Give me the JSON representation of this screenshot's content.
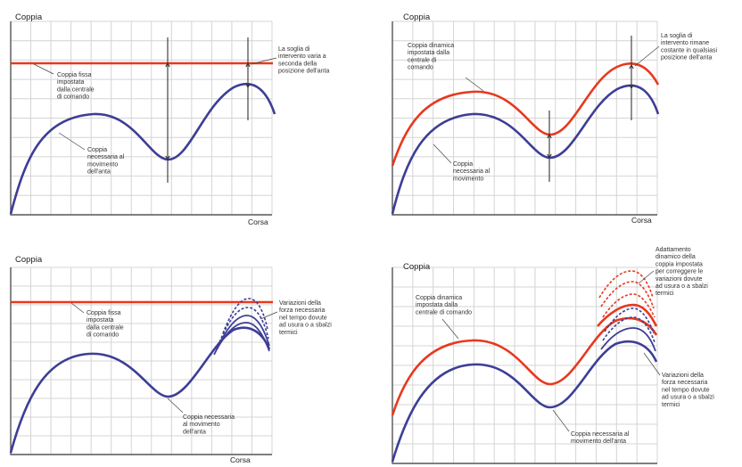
{
  "panels": [
    {
      "id": "p1",
      "title": "Coppia",
      "x_label": "Corsa",
      "labels": {
        "red": [
          "Coppia fissa",
          "impostata",
          "dalla centrale",
          "di comando"
        ],
        "blue": [
          "Coppia",
          "necessaria al",
          "movimento",
          "dell'anta"
        ],
        "side": [
          "La soglia di",
          "intervento varia a",
          "seconda della",
          "posizione dell'anta"
        ]
      }
    },
    {
      "id": "p2",
      "title": "Coppia",
      "x_label": "Corsa",
      "labels": {
        "red": [
          "Coppia dinamica",
          "impostata dalla",
          "centrale di",
          "comando"
        ],
        "blue": [
          "Coppia",
          "necessaria al",
          "movimento"
        ],
        "side": [
          "La soglia di",
          "intervento rimane",
          "costante in qualsiasi",
          "posizione dell'anta"
        ]
      }
    },
    {
      "id": "p3",
      "title": "Coppia",
      "x_label": "Corsa",
      "labels": {
        "red": [
          "Coppia fissa",
          "impostata",
          "dalla centrale",
          "di comando"
        ],
        "blue": [
          "Coppia necessaria",
          "al movimento",
          "dell'anta"
        ],
        "side": [
          "Variazioni della",
          "forza necessaria",
          "nel tempo dovute",
          "ad usura o a sbalzi",
          "termici"
        ]
      }
    },
    {
      "id": "p4",
      "title": "Coppia",
      "x_label": "Corsa",
      "labels": {
        "red": [
          "Coppia dinamica",
          "impostata dalla",
          "centrale di comando"
        ],
        "blue": [
          "Coppia necessaria al",
          "movimento dell'anta"
        ],
        "side_top": [
          "Adattamento",
          "dinamico della",
          "coppia impostata",
          "per correggere le",
          "variazioni dovute",
          "ad usura o a sbalzi",
          "termici"
        ],
        "side_bottom": [
          "Variazioni della",
          "forza necessaria",
          "nel tempo dovute",
          "ad usura o a sbalzi",
          "termici"
        ]
      }
    }
  ],
  "colors": {
    "required_torque": "#3d3e95",
    "set_torque": "#e8381e",
    "grid": "#d4d4d4"
  }
}
